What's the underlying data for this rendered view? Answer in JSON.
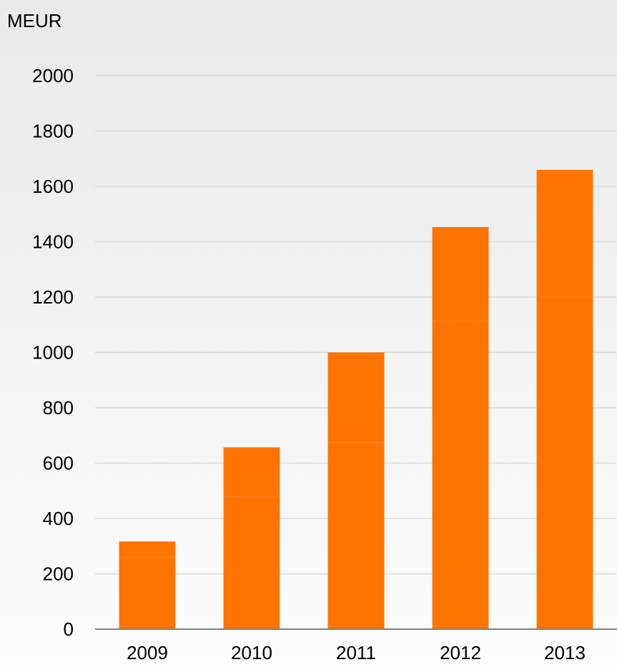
{
  "chart_data": {
    "type": "bar",
    "unit_label": "MEUR",
    "categories": [
      "2009",
      "2010",
      "2011",
      "2012",
      "2013"
    ],
    "series": [
      {
        "values": [
          260,
          478,
          675,
          1113,
          1200
        ]
      },
      {
        "values": [
          57,
          179,
          325,
          340,
          460
        ]
      }
    ],
    "totals": [
      317,
      657,
      1000,
      1453,
      1660
    ],
    "ylim": [
      0,
      2000
    ],
    "yticks": [
      "0",
      "200",
      "400",
      "600",
      "800",
      "1000",
      "1200",
      "1400",
      "1600",
      "1800",
      "2000"
    ],
    "grid": true,
    "legend": "none",
    "colors": {
      "bar": "#ff7300",
      "bar_segment_edge": "#ff8a2a",
      "grid": "#d9d9d9",
      "axis": "#7f7f7f",
      "text": "#000000"
    }
  }
}
